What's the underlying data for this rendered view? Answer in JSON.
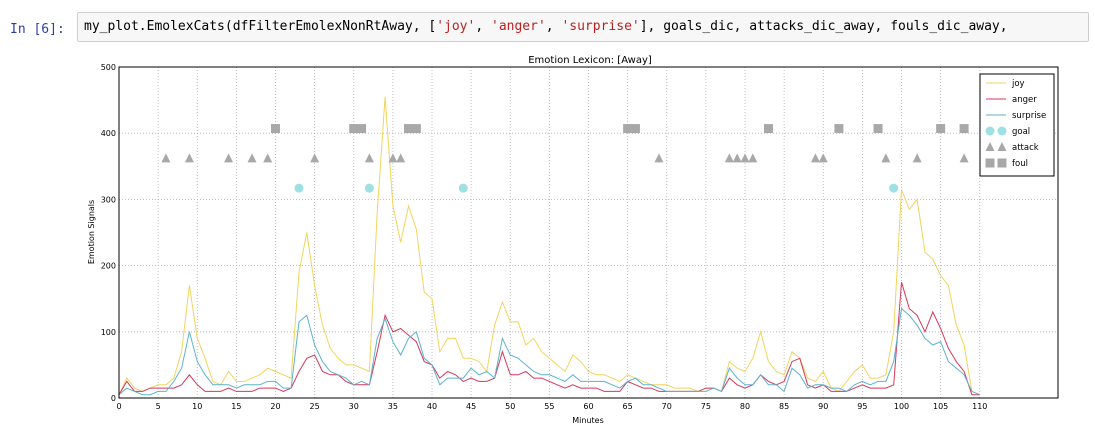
{
  "cell": {
    "prompt": "In [6]:",
    "code_pre": "my_plot.EmolexCats(dfFilterEmolexNonRtAway, [",
    "code_s1": "'joy'",
    "code_sep1": ", ",
    "code_s2": "'anger'",
    "code_sep2": ", ",
    "code_s3": "'surprise'",
    "code_post": "], goals_dic, attacks_dic_away, fouls_dic_away,"
  },
  "chart_data": {
    "type": "line",
    "title": "Emotion Lexicon: [Away]",
    "xlabel": "Minutes",
    "ylabel": "Emotion Signals",
    "xlim": [
      0,
      120
    ],
    "ylim": [
      0,
      500
    ],
    "xticks": [
      0,
      5,
      10,
      15,
      20,
      25,
      30,
      35,
      40,
      45,
      50,
      55,
      60,
      65,
      70,
      75,
      80,
      85,
      90,
      95,
      100,
      105,
      110
    ],
    "yticks": [
      0,
      100,
      200,
      300,
      400,
      500
    ],
    "grid": true,
    "legend_position": "top-right",
    "series": [
      {
        "name": "joy",
        "color": "#f2d45c",
        "x": [
          0,
          1,
          2,
          3,
          4,
          5,
          6,
          7,
          8,
          9,
          10,
          11,
          12,
          13,
          14,
          15,
          16,
          17,
          18,
          19,
          20,
          21,
          22,
          23,
          24,
          25,
          26,
          27,
          28,
          29,
          30,
          31,
          32,
          33,
          34,
          35,
          36,
          37,
          38,
          39,
          40,
          41,
          42,
          43,
          44,
          45,
          46,
          47,
          48,
          49,
          50,
          51,
          52,
          53,
          54,
          55,
          56,
          57,
          58,
          59,
          60,
          61,
          62,
          63,
          64,
          65,
          66,
          67,
          68,
          69,
          70,
          71,
          72,
          73,
          74,
          75,
          76,
          77,
          78,
          79,
          80,
          81,
          82,
          83,
          84,
          85,
          86,
          87,
          88,
          89,
          90,
          91,
          92,
          93,
          94,
          95,
          96,
          97,
          98,
          99,
          100,
          101,
          102,
          103,
          104,
          105,
          106,
          107,
          108,
          109,
          110
        ],
        "values": [
          5,
          30,
          15,
          10,
          15,
          20,
          20,
          30,
          70,
          170,
          90,
          60,
          25,
          20,
          40,
          25,
          25,
          30,
          35,
          45,
          40,
          35,
          30,
          190,
          250,
          170,
          110,
          75,
          60,
          50,
          50,
          45,
          40,
          280,
          455,
          290,
          235,
          290,
          255,
          160,
          150,
          70,
          90,
          90,
          60,
          60,
          55,
          40,
          110,
          145,
          115,
          115,
          80,
          90,
          70,
          60,
          50,
          40,
          65,
          55,
          40,
          35,
          35,
          30,
          25,
          35,
          30,
          25,
          20,
          20,
          20,
          15,
          15,
          15,
          10,
          15,
          15,
          10,
          55,
          45,
          40,
          60,
          100,
          55,
          40,
          35,
          70,
          60,
          30,
          25,
          40,
          15,
          10,
          25,
          40,
          50,
          30,
          30,
          35,
          100,
          315,
          285,
          300,
          220,
          210,
          185,
          170,
          110,
          80,
          10,
          5
        ]
      },
      {
        "name": "anger",
        "color": "#d6385b",
        "x": [
          0,
          1,
          2,
          3,
          4,
          5,
          6,
          7,
          8,
          9,
          10,
          11,
          12,
          13,
          14,
          15,
          16,
          17,
          18,
          19,
          20,
          21,
          22,
          23,
          24,
          25,
          26,
          27,
          28,
          29,
          30,
          31,
          32,
          33,
          34,
          35,
          36,
          37,
          38,
          39,
          40,
          41,
          42,
          43,
          44,
          45,
          46,
          47,
          48,
          49,
          50,
          51,
          52,
          53,
          54,
          55,
          56,
          57,
          58,
          59,
          60,
          61,
          62,
          63,
          64,
          65,
          66,
          67,
          68,
          69,
          70,
          71,
          72,
          73,
          74,
          75,
          76,
          77,
          78,
          79,
          80,
          81,
          82,
          83,
          84,
          85,
          86,
          87,
          88,
          89,
          90,
          91,
          92,
          93,
          94,
          95,
          96,
          97,
          98,
          99,
          100,
          101,
          102,
          103,
          104,
          105,
          106,
          107,
          108,
          109,
          110
        ],
        "values": [
          5,
          25,
          10,
          10,
          15,
          15,
          15,
          15,
          20,
          35,
          20,
          10,
          10,
          10,
          15,
          10,
          10,
          10,
          15,
          15,
          15,
          10,
          15,
          40,
          60,
          65,
          40,
          35,
          35,
          25,
          20,
          20,
          20,
          70,
          125,
          100,
          105,
          95,
          85,
          55,
          50,
          30,
          40,
          35,
          25,
          30,
          25,
          25,
          30,
          70,
          35,
          35,
          40,
          30,
          30,
          25,
          20,
          15,
          20,
          15,
          15,
          15,
          10,
          10,
          10,
          25,
          20,
          15,
          15,
          10,
          10,
          10,
          10,
          10,
          10,
          15,
          15,
          10,
          30,
          20,
          15,
          20,
          35,
          25,
          20,
          25,
          55,
          60,
          20,
          15,
          20,
          10,
          10,
          10,
          15,
          20,
          15,
          15,
          15,
          20,
          175,
          135,
          125,
          100,
          130,
          105,
          75,
          55,
          40,
          5,
          5
        ]
      },
      {
        "name": "surprise",
        "color": "#5db2cf",
        "x": [
          0,
          1,
          2,
          3,
          4,
          5,
          6,
          7,
          8,
          9,
          10,
          11,
          12,
          13,
          14,
          15,
          16,
          17,
          18,
          19,
          20,
          21,
          22,
          23,
          24,
          25,
          26,
          27,
          28,
          29,
          30,
          31,
          32,
          33,
          34,
          35,
          36,
          37,
          38,
          39,
          40,
          41,
          42,
          43,
          44,
          45,
          46,
          47,
          48,
          49,
          50,
          51,
          52,
          53,
          54,
          55,
          56,
          57,
          58,
          59,
          60,
          61,
          62,
          63,
          64,
          65,
          66,
          67,
          68,
          69,
          70,
          71,
          72,
          73,
          74,
          75,
          76,
          77,
          78,
          79,
          80,
          81,
          82,
          83,
          84,
          85,
          86,
          87,
          88,
          89,
          90,
          91,
          92,
          93,
          94,
          95,
          96,
          97,
          98,
          99,
          100,
          101,
          102,
          103,
          104,
          105,
          106,
          107,
          108,
          109,
          110
        ],
        "values": [
          5,
          15,
          10,
          5,
          5,
          10,
          10,
          25,
          45,
          100,
          55,
          35,
          20,
          20,
          20,
          15,
          20,
          20,
          20,
          25,
          25,
          15,
          15,
          115,
          125,
          80,
          55,
          40,
          35,
          30,
          20,
          25,
          20,
          90,
          120,
          85,
          65,
          90,
          100,
          60,
          50,
          20,
          30,
          30,
          30,
          45,
          35,
          40,
          30,
          90,
          65,
          60,
          50,
          40,
          35,
          35,
          30,
          25,
          35,
          25,
          25,
          25,
          25,
          20,
          15,
          25,
          30,
          20,
          20,
          15,
          10,
          10,
          10,
          10,
          10,
          10,
          15,
          10,
          45,
          30,
          20,
          20,
          35,
          20,
          20,
          10,
          45,
          35,
          15,
          20,
          20,
          15,
          15,
          10,
          20,
          25,
          20,
          25,
          25,
          55,
          135,
          125,
          110,
          90,
          80,
          85,
          55,
          45,
          35,
          10,
          5
        ]
      }
    ],
    "markers": [
      {
        "name": "goal",
        "shape": "circle",
        "color": "#9fe0e3",
        "y": 317,
        "x": [
          23,
          32,
          44,
          99
        ]
      },
      {
        "name": "attack",
        "shape": "triangle",
        "color": "#a8a8a8",
        "y": 362,
        "x": [
          6,
          9,
          14,
          17,
          19,
          25,
          32,
          35,
          36,
          69,
          78,
          79,
          80,
          81,
          89,
          90,
          98,
          102,
          108
        ]
      },
      {
        "name": "foul",
        "shape": "square",
        "color": "#a8a8a8",
        "y": 407,
        "x": [
          20,
          30,
          31,
          37,
          38,
          65,
          66,
          83,
          92,
          97,
          105,
          108
        ]
      }
    ]
  }
}
